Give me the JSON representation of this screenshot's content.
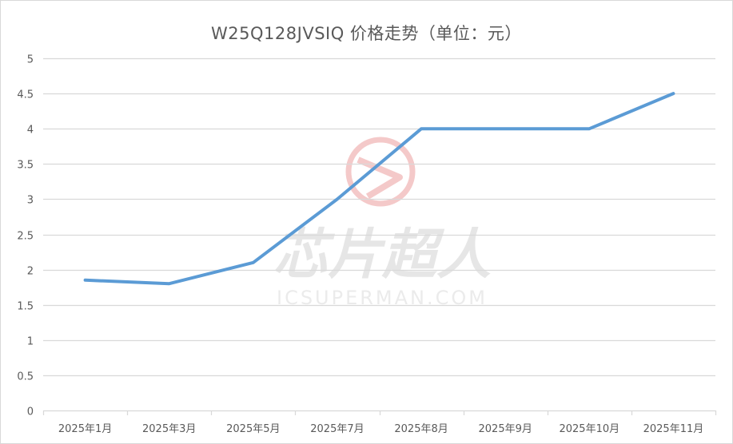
{
  "chart": {
    "title": "W25Q128JVSIQ 价格走势（单位：元）"
  },
  "watermark": {
    "logo": "circle-arrow-logo",
    "text_cn": "芯片超人",
    "text_en": "ICSUPERMAN.COM",
    "logo_color": "#f4c9c9"
  },
  "colors": {
    "line": "#5b9bd5",
    "grid": "#d9d9d9",
    "text": "#595959"
  },
  "chart_data": {
    "type": "line",
    "title": "W25Q128JVSIQ 价格走势（单位：元）",
    "xlabel": "",
    "ylabel": "",
    "categories": [
      "2025年1月",
      "2025年3月",
      "2025年5月",
      "2025年7月",
      "2025年8月",
      "2025年9月",
      "2025年10月",
      "2025年11月"
    ],
    "series": [
      {
        "name": "W25Q128JVSIQ",
        "values": [
          1.85,
          1.8,
          2.1,
          3.0,
          4.0,
          4.0,
          4.0,
          4.5
        ]
      }
    ],
    "ylim": [
      0,
      5
    ],
    "yticks": [
      "0",
      "0.5",
      "1",
      "1.5",
      "2",
      "2.5",
      "3",
      "3.5",
      "4",
      "4.5",
      "5"
    ],
    "grid": true,
    "legend": "none"
  }
}
